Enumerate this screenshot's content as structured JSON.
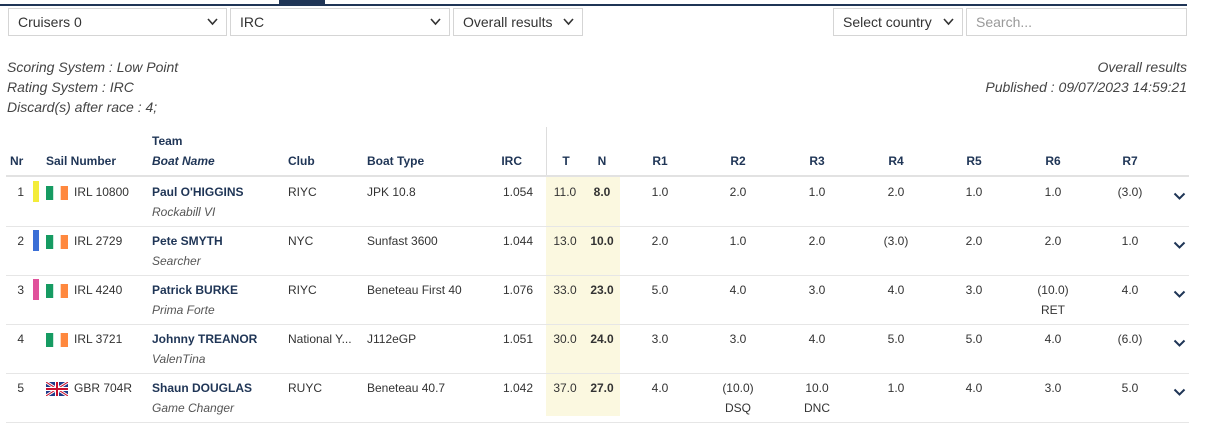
{
  "filters": {
    "division": "Cruisers 0",
    "rating": "IRC",
    "view": "Overall results",
    "country": "Select country",
    "search_placeholder": "Search..."
  },
  "info": {
    "scoring": "Scoring System : Low Point",
    "rating": "Rating System : IRC",
    "discards": "Discard(s) after race : 4;",
    "view": "Overall results",
    "published": "Published : 09/07/2023 14:59:21"
  },
  "table": {
    "headers": {
      "nr": "Nr",
      "sail": "Sail Number",
      "team": "Team",
      "boat": "Boat Name",
      "club": "Club",
      "type": "Boat Type",
      "irc": "IRC",
      "total": "T",
      "net": "N",
      "races": [
        "R1",
        "R2",
        "R3",
        "R4",
        "R5",
        "R6",
        "R7"
      ]
    },
    "rows": [
      {
        "nr": "1",
        "color": "#f3ec3a",
        "flag": "ie",
        "sail": "IRL 10800",
        "team": "Paul O'HIGGINS",
        "boat": "Rockabill VI",
        "club": "RIYC",
        "type": "JPK 10.8",
        "irc": "1.054",
        "total": "11.0",
        "net": "8.0",
        "races": [
          "1.0",
          "2.0",
          "1.0",
          "2.0",
          "1.0",
          "1.0",
          "(3.0)"
        ]
      },
      {
        "nr": "2",
        "color": "#3b6fd6",
        "flag": "ie",
        "sail": "IRL 2729",
        "team": "Pete SMYTH",
        "boat": "Searcher",
        "club": "NYC",
        "type": "Sunfast 3600",
        "irc": "1.044",
        "total": "13.0",
        "net": "10.0",
        "races": [
          "2.0",
          "1.0",
          "2.0",
          "(3.0)",
          "2.0",
          "2.0",
          "1.0"
        ]
      },
      {
        "nr": "3",
        "color": "#e0529b",
        "flag": "ie",
        "sail": "IRL 4240",
        "team": "Patrick BURKE",
        "boat": "Prima Forte",
        "club": "RIYC",
        "type": "Beneteau First 40",
        "irc": "1.076",
        "total": "33.0",
        "net": "23.0",
        "races": [
          "5.0",
          "4.0",
          "3.0",
          "4.0",
          "3.0",
          {
            "score": "(10.0)",
            "code": "RET"
          },
          "4.0"
        ]
      },
      {
        "nr": "4",
        "flag": "ie",
        "sail": "IRL 3721",
        "team": "Johnny TREANOR",
        "boat": "ValenTina",
        "club": "National Y...",
        "type": "J112eGP",
        "irc": "1.051",
        "total": "30.0",
        "net": "24.0",
        "races": [
          "3.0",
          "3.0",
          "4.0",
          "5.0",
          "5.0",
          "4.0",
          "(6.0)"
        ]
      },
      {
        "nr": "5",
        "flag": "gb",
        "sail": "GBR 704R",
        "team": "Shaun DOUGLAS",
        "boat": "Game Changer",
        "club": "RUYC",
        "type": "Beneteau 40.7",
        "irc": "1.042",
        "total": "37.0",
        "net": "27.0",
        "races": [
          "4.0",
          {
            "score": "(10.0)",
            "code": "DSQ"
          },
          {
            "score": "10.0",
            "code": "DNC"
          },
          "1.0",
          "4.0",
          "3.0",
          "5.0"
        ]
      }
    ]
  }
}
